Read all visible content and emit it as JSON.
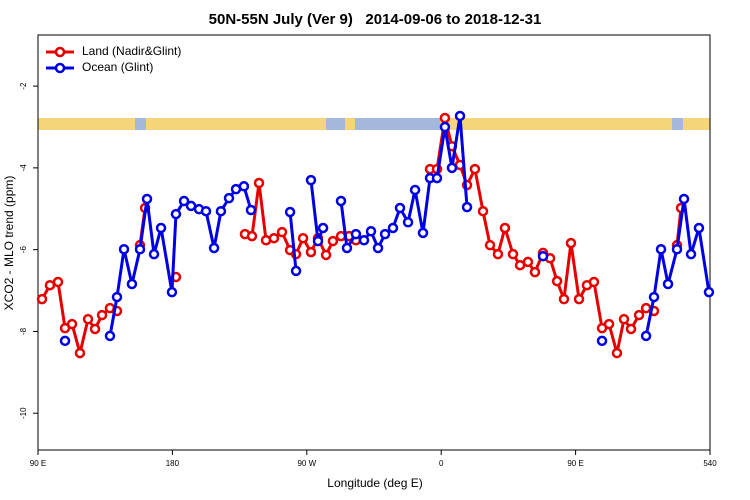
{
  "chart_data": {
    "type": "line",
    "title": "50N-55N July (Ver 9)   2014-09-06 to 2018-12-31",
    "x_label": "Longitude (deg E)",
    "y_label": "XCO2 - MLO trend (ppm)",
    "xlim": [
      90,
      540
    ],
    "ylim": [
      -10.9,
      -0.75
    ],
    "xticks": [
      {
        "value": 90,
        "label": "90 E"
      },
      180,
      {
        "value": 270,
        "label": "90 W"
      },
      {
        "value": 360,
        "label": "0"
      },
      {
        "value": 450,
        "label": "90 E"
      },
      540
    ],
    "yticks": [
      -2,
      -4,
      -6,
      -8,
      -10
    ],
    "legend": "top-left",
    "series": [
      {
        "name": "Land (Nadir&Glint)",
        "color": "#e60000",
        "x": [
          92.7,
          98.0,
          103.4,
          108.1,
          112.8,
          118.1,
          123.5,
          128.2,
          132.9,
          138.2,
          142.9,
          null,
          158.3,
          161.7,
          null,
          182.4,
          null,
          228.6,
          233.3,
          238.0,
          242.7,
          248.0,
          253.4,
          258.8,
          262.8,
          267.5,
          272.8,
          277.5,
          282.9,
          287.5,
          292.9,
          298.3,
          302.9,
          null,
          352.5,
          357.2,
          362.5,
          367.2,
          372.6,
          377.3,
          382.6,
          388.0,
          392.7,
          398.0,
          402.7,
          408.1,
          412.8,
          418.1,
          422.8,
          428.2,
          432.9,
          437.6,
          442.2,
          446.9,
          452.3,
          457.6,
          462.3,
          467.7,
          472.4,
          477.7,
          482.4,
          487.1,
          492.5,
          497.2,
          502.5,
          null,
          517.9,
          520.6
        ],
        "values": [
          -7.21,
          -6.87,
          -6.79,
          -7.92,
          -7.82,
          -8.53,
          -7.7,
          -7.94,
          -7.6,
          -7.43,
          -7.5,
          null,
          -5.89,
          -4.98,
          null,
          -6.67,
          null,
          -5.62,
          -5.67,
          -4.37,
          -5.77,
          -5.72,
          -5.57,
          -6.01,
          -6.11,
          -5.72,
          -6.06,
          -5.72,
          -6.13,
          -5.79,
          -5.67,
          -5.67,
          -5.77,
          null,
          -4.03,
          -4.03,
          -2.78,
          -3.47,
          -3.93,
          -4.42,
          -4.03,
          -5.06,
          -5.89,
          -6.11,
          -5.47,
          -6.11,
          -6.38,
          -6.3,
          -6.55,
          -6.08,
          -6.21,
          -6.77,
          -7.21,
          -5.84,
          -7.21,
          -6.87,
          -6.79,
          -7.92,
          -7.82,
          -8.53,
          -7.7,
          -7.94,
          -7.6,
          -7.43,
          -7.5,
          null,
          -5.89,
          -4.98
        ]
      },
      {
        "name": "Ocean (Glint)",
        "color": "#0000e6",
        "x": [
          108.1,
          null,
          138.2,
          142.9,
          147.6,
          152.9,
          158.3,
          163.0,
          167.7,
          172.4,
          179.7,
          182.4,
          187.8,
          192.5,
          197.8,
          202.5,
          207.9,
          212.5,
          217.9,
          222.6,
          227.9,
          232.6,
          null,
          258.8,
          262.8,
          null,
          272.8,
          277.5,
          280.9,
          null,
          292.9,
          296.9,
          302.9,
          308.3,
          313.0,
          317.7,
          322.4,
          327.7,
          332.4,
          337.8,
          342.5,
          347.8,
          352.5,
          357.2,
          362.5,
          367.2,
          372.6,
          377.3,
          null,
          428.2,
          null,
          467.7,
          null,
          497.2,
          502.5,
          507.2,
          511.9,
          517.9,
          522.6,
          527.3,
          532.6,
          539.3
        ],
        "values": [
          -8.23,
          null,
          -8.11,
          -7.16,
          -5.99,
          -6.84,
          -5.99,
          -4.76,
          -6.11,
          -5.47,
          -7.04,
          -5.13,
          -4.81,
          -4.93,
          -5.01,
          -5.06,
          -5.96,
          -5.06,
          -4.74,
          -4.52,
          -4.45,
          -5.03,
          null,
          -5.08,
          -6.52,
          null,
          -4.3,
          -5.79,
          -5.47,
          null,
          -4.81,
          -5.96,
          -5.62,
          -5.77,
          -5.55,
          -5.96,
          -5.62,
          -5.47,
          -4.98,
          -5.33,
          -4.54,
          -5.59,
          -4.25,
          -4.25,
          -3.0,
          -4.0,
          -2.73,
          -4.96,
          null,
          -6.16,
          null,
          -8.23,
          null,
          -8.11,
          -7.16,
          -5.99,
          -6.84,
          -5.99,
          -4.76,
          -6.11,
          -5.47,
          -7.04
        ]
      }
    ]
  }
}
